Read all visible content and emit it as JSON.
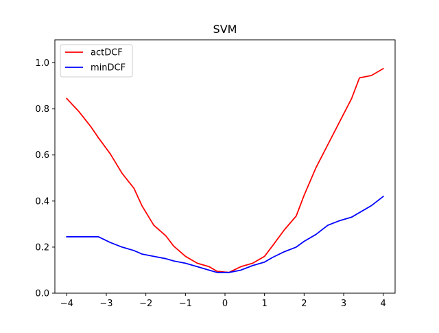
{
  "chart_data": {
    "type": "line",
    "title": "SVM",
    "xlabel": "",
    "ylabel": "",
    "xlim": [
      -4.3,
      4.3
    ],
    "ylim": [
      0.0,
      1.1
    ],
    "grid": false,
    "legend_position": "top-left",
    "x_ticks": [
      -4,
      -3,
      -2,
      -1,
      0,
      1,
      2,
      3,
      4
    ],
    "x_tick_labels": [
      "−4",
      "−3",
      "−2",
      "−1",
      "0",
      "1",
      "2",
      "3",
      "4"
    ],
    "y_ticks": [
      0.0,
      0.2,
      0.4,
      0.6,
      0.8,
      1.0
    ],
    "y_tick_labels": [
      "0.0",
      "0.2",
      "0.4",
      "0.6",
      "0.8",
      "1.0"
    ],
    "x": [
      -4.0,
      -3.7,
      -3.4,
      -3.2,
      -2.9,
      -2.6,
      -2.3,
      -2.1,
      -1.8,
      -1.5,
      -1.3,
      -1.0,
      -0.7,
      -0.4,
      -0.2,
      0.1,
      0.4,
      0.7,
      1.0,
      1.2,
      1.5,
      1.8,
      2.0,
      2.3,
      2.6,
      2.9,
      3.2,
      3.4,
      3.7,
      4.0
    ],
    "series": [
      {
        "name": "actDCF",
        "color": "#ff0000",
        "values": [
          0.845,
          0.79,
          0.725,
          0.675,
          0.605,
          0.52,
          0.455,
          0.38,
          0.295,
          0.25,
          0.205,
          0.16,
          0.13,
          0.115,
          0.095,
          0.09,
          0.115,
          0.13,
          0.16,
          0.205,
          0.275,
          0.335,
          0.425,
          0.545,
          0.645,
          0.745,
          0.845,
          0.935,
          0.945,
          0.975
        ]
      },
      {
        "name": "minDCF",
        "color": "#0000ff",
        "values": [
          0.245,
          0.245,
          0.245,
          0.245,
          0.22,
          0.2,
          0.185,
          0.17,
          0.16,
          0.15,
          0.14,
          0.13,
          0.115,
          0.1,
          0.09,
          0.09,
          0.1,
          0.12,
          0.135,
          0.155,
          0.18,
          0.2,
          0.225,
          0.255,
          0.295,
          0.315,
          0.33,
          0.35,
          0.38,
          0.42
        ]
      }
    ]
  }
}
